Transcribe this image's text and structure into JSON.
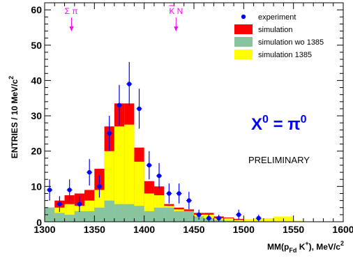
{
  "chart_data": {
    "type": "bar",
    "xlabel": "MM(p_Fd K+), MeV/c2",
    "ylabel": "ENTRIES / 10 MeV/c2",
    "xlim": [
      1300,
      1600
    ],
    "ylim": [
      0,
      62
    ],
    "x_ticks": [
      1300,
      1350,
      1400,
      1450,
      1500,
      1550,
      1600
    ],
    "y_ticks": [
      10,
      20,
      30,
      40,
      50,
      60
    ],
    "bin_width": 10,
    "bin_low_edges": [
      1300,
      1310,
      1320,
      1330,
      1340,
      1350,
      1360,
      1370,
      1380,
      1390,
      1400,
      1410,
      1420,
      1430,
      1440,
      1450,
      1460,
      1470,
      1480,
      1490,
      1500,
      1510,
      1520,
      1530,
      1540,
      1550,
      1560,
      1570,
      1580,
      1590
    ],
    "series": [
      {
        "name": "simulation",
        "color": "#ff0000",
        "values": [
          4,
          6,
          7.5,
          8,
          9,
          15,
          27,
          33.5,
          33.5,
          21,
          11.5,
          10,
          5,
          4,
          3.5,
          2.5,
          2.5,
          1.5,
          1.2,
          0.8,
          0.7,
          0.7,
          0.4,
          0.3,
          0.1,
          0.1,
          0,
          0,
          0,
          0
        ]
      },
      {
        "name": "simulation 1385",
        "color": "#ffff00",
        "values": [
          4,
          4,
          5,
          4.5,
          6,
          9,
          20,
          27,
          27.5,
          17,
          8,
          7.5,
          4.5,
          3.5,
          3,
          2,
          2,
          1,
          1,
          0.5,
          0.7,
          1,
          1,
          1.5,
          1.5,
          0.3,
          0,
          0,
          0,
          0
        ]
      },
      {
        "name": "simulation wo 1385",
        "color": "#88c4a0",
        "values": [
          4,
          2.5,
          2,
          3,
          3,
          4,
          6,
          5,
          5,
          4.5,
          3,
          4,
          4,
          3,
          3,
          1.5,
          1,
          0.5,
          0.3,
          0.2,
          0.1,
          0,
          0,
          0,
          0,
          0,
          0,
          0,
          0,
          0
        ]
      },
      {
        "name": "experiment",
        "color": "#0000ff",
        "x": [
          1305,
          1315,
          1325,
          1335,
          1345,
          1355,
          1365,
          1375,
          1385,
          1395,
          1405,
          1415,
          1425,
          1435,
          1445,
          1455,
          1465,
          1475,
          1495,
          1515
        ],
        "y": [
          9,
          5,
          9,
          5,
          14,
          10,
          25,
          33,
          39,
          32,
          16,
          13,
          8,
          8,
          6,
          2,
          1,
          1,
          2,
          1
        ]
      }
    ]
  },
  "legend": [
    {
      "label": "experiment",
      "kind": "marker",
      "color": "#0000ff"
    },
    {
      "label": "simulation",
      "kind": "box",
      "color": "#ff0000"
    },
    {
      "label": "simulation wo 1385",
      "kind": "box",
      "color": "#88c4a0"
    },
    {
      "label": "simulation 1385",
      "kind": "box",
      "color": "#ffff00"
    }
  ],
  "annotations": {
    "sigma_pi": "Σ π",
    "kbar_n_k": "K",
    "kbar_n_n": " N",
    "x0": "X",
    "x0_sup": "0",
    "x0_eq": " = π",
    "x0_pi_sup": "0",
    "preliminary": "PRELIMINARY",
    "sigma_pi_x": 1327,
    "kbar_n_x": 1432
  },
  "axis_title_parts": {
    "y": "ENTRIES / 10 MeV/c",
    "y_sup": "2",
    "x_mm": "MM(p",
    "x_sub": "Fd",
    "x_k": " K",
    "x_sup_plus": "+",
    "x_tail": "), MeV/c",
    "x_sup2": "2"
  }
}
